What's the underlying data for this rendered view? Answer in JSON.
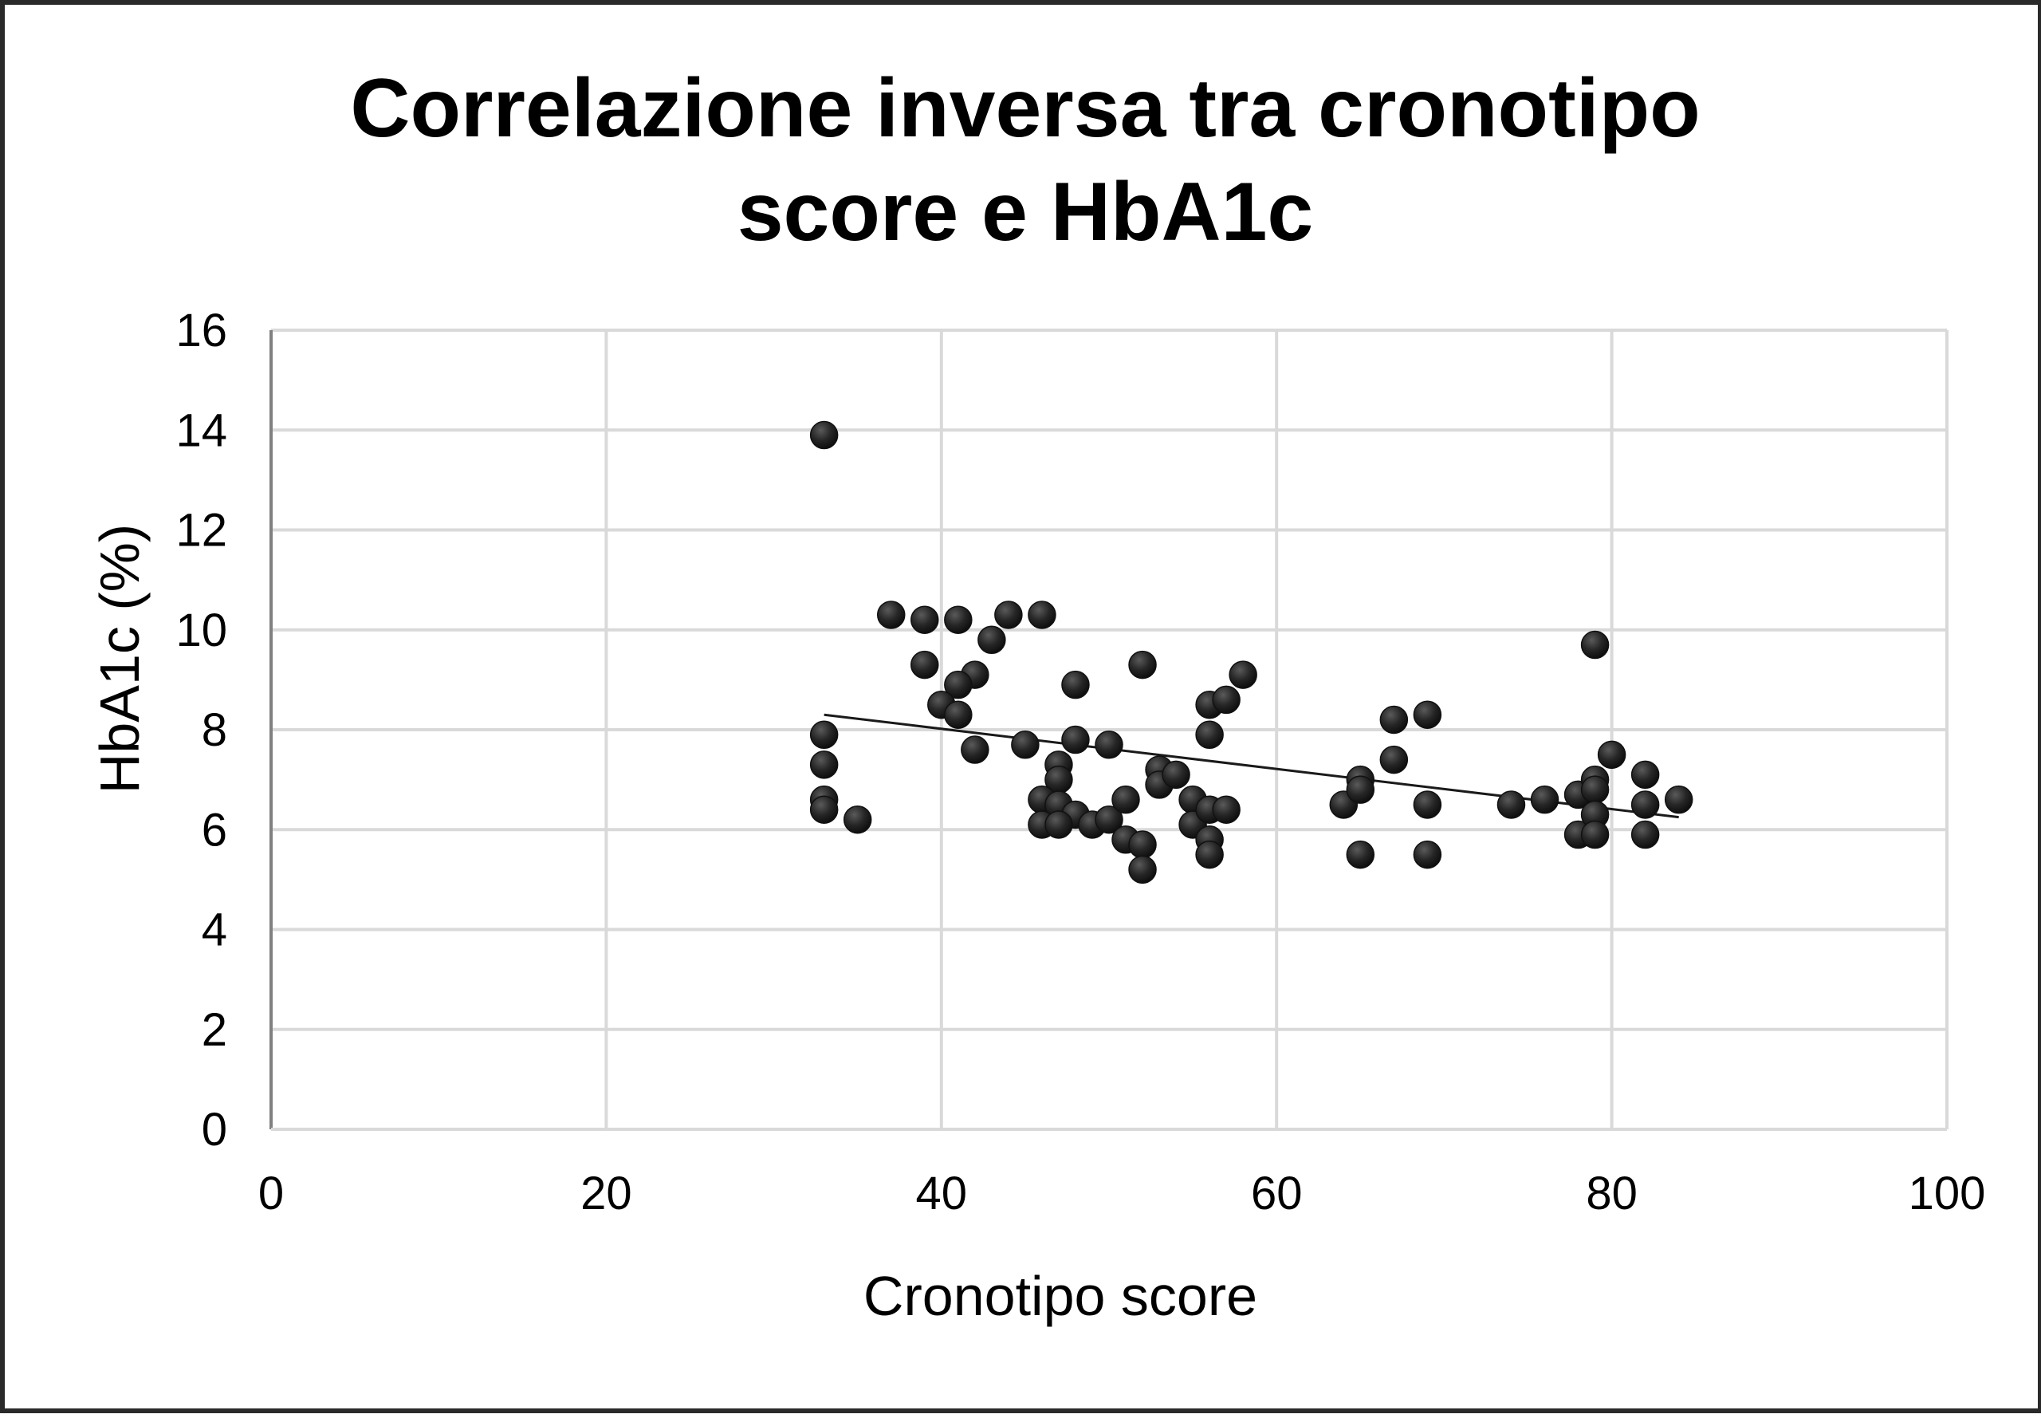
{
  "colors": {
    "background": "#ffffff",
    "gridline": "#d9d9d9",
    "axis": "#808080",
    "marker": "#262626",
    "trendline": "#1a1a1a",
    "frame": "#2a2a2a"
  },
  "chart_data": {
    "type": "scatter",
    "title": [
      "Correlazione inversa tra cronotipo",
      "score e HbA1c"
    ],
    "xlabel": "Cronotipo score",
    "ylabel": "HbA1c (%)",
    "xlim": [
      0,
      100
    ],
    "ylim": [
      0,
      16
    ],
    "xticks": [
      0,
      20,
      40,
      60,
      80,
      100
    ],
    "yticks": [
      0,
      2,
      4,
      6,
      8,
      10,
      12,
      14,
      16
    ],
    "xtick_labels": [
      "0",
      "20",
      "40",
      "60",
      "80",
      "100"
    ],
    "ytick_labels": [
      "0",
      "2",
      "4",
      "6",
      "8",
      "10",
      "12",
      "14",
      "16"
    ],
    "grid": "on",
    "legend": "none",
    "trendline": {
      "type": "linear",
      "x": [
        33,
        84
      ],
      "y": [
        8.3,
        6.25
      ]
    },
    "points": [
      {
        "x": 33,
        "y": 13.9
      },
      {
        "x": 33,
        "y": 7.9
      },
      {
        "x": 33,
        "y": 7.3
      },
      {
        "x": 33,
        "y": 6.6
      },
      {
        "x": 33,
        "y": 6.4
      },
      {
        "x": 35,
        "y": 6.2
      },
      {
        "x": 37,
        "y": 10.3
      },
      {
        "x": 39,
        "y": 10.2
      },
      {
        "x": 41,
        "y": 10.2
      },
      {
        "x": 44,
        "y": 10.3
      },
      {
        "x": 46,
        "y": 10.3
      },
      {
        "x": 43,
        "y": 9.8
      },
      {
        "x": 39,
        "y": 9.3
      },
      {
        "x": 42,
        "y": 9.1
      },
      {
        "x": 41,
        "y": 8.9
      },
      {
        "x": 40,
        "y": 8.5
      },
      {
        "x": 41,
        "y": 8.3
      },
      {
        "x": 42,
        "y": 7.6
      },
      {
        "x": 45,
        "y": 7.7
      },
      {
        "x": 48,
        "y": 8.9
      },
      {
        "x": 48,
        "y": 7.8
      },
      {
        "x": 50,
        "y": 7.7
      },
      {
        "x": 47,
        "y": 7.3
      },
      {
        "x": 47,
        "y": 7.0
      },
      {
        "x": 46,
        "y": 6.6
      },
      {
        "x": 47,
        "y": 6.5
      },
      {
        "x": 48,
        "y": 6.3
      },
      {
        "x": 46,
        "y": 6.1
      },
      {
        "x": 47,
        "y": 6.1
      },
      {
        "x": 49,
        "y": 6.1
      },
      {
        "x": 50,
        "y": 6.2
      },
      {
        "x": 51,
        "y": 6.6
      },
      {
        "x": 51,
        "y": 5.8
      },
      {
        "x": 52,
        "y": 5.7
      },
      {
        "x": 52,
        "y": 5.2
      },
      {
        "x": 52,
        "y": 9.3
      },
      {
        "x": 53,
        "y": 7.2
      },
      {
        "x": 53,
        "y": 6.9
      },
      {
        "x": 54,
        "y": 7.1
      },
      {
        "x": 55,
        "y": 6.6
      },
      {
        "x": 55,
        "y": 6.1
      },
      {
        "x": 56,
        "y": 6.4
      },
      {
        "x": 56,
        "y": 5.8
      },
      {
        "x": 56,
        "y": 5.5
      },
      {
        "x": 57,
        "y": 6.4
      },
      {
        "x": 56,
        "y": 8.5
      },
      {
        "x": 57,
        "y": 8.6
      },
      {
        "x": 58,
        "y": 9.1
      },
      {
        "x": 56,
        "y": 7.9
      },
      {
        "x": 64,
        "y": 6.5
      },
      {
        "x": 65,
        "y": 7.0
      },
      {
        "x": 65,
        "y": 6.8
      },
      {
        "x": 65,
        "y": 5.5
      },
      {
        "x": 67,
        "y": 8.2
      },
      {
        "x": 67,
        "y": 7.4
      },
      {
        "x": 69,
        "y": 8.3
      },
      {
        "x": 69,
        "y": 6.5
      },
      {
        "x": 69,
        "y": 5.5
      },
      {
        "x": 74,
        "y": 6.5
      },
      {
        "x": 76,
        "y": 6.6
      },
      {
        "x": 78,
        "y": 6.7
      },
      {
        "x": 78,
        "y": 5.9
      },
      {
        "x": 79,
        "y": 9.7
      },
      {
        "x": 79,
        "y": 7.0
      },
      {
        "x": 79,
        "y": 6.8
      },
      {
        "x": 79,
        "y": 6.3
      },
      {
        "x": 79,
        "y": 5.9
      },
      {
        "x": 80,
        "y": 7.5
      },
      {
        "x": 82,
        "y": 7.1
      },
      {
        "x": 82,
        "y": 6.5
      },
      {
        "x": 82,
        "y": 5.9
      },
      {
        "x": 84,
        "y": 6.6
      }
    ]
  }
}
